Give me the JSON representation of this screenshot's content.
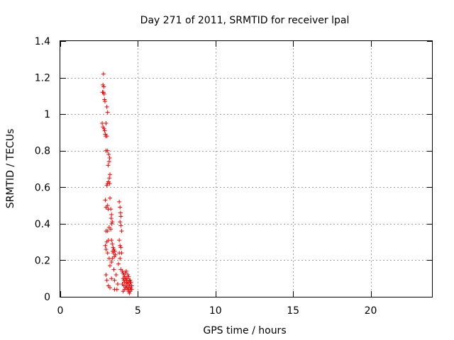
{
  "chart_data": {
    "type": "scatter",
    "title": "Day 271 of 2011, SRMTID for receiver lpal",
    "xlabel": "GPS time / hours",
    "ylabel": "SRMTID / TECUs",
    "xlim": [
      0,
      24
    ],
    "ylim": [
      0,
      1.4
    ],
    "x_ticks": [
      0,
      5,
      10,
      15,
      20
    ],
    "x_tick_labels": [
      "0",
      "5",
      "10",
      "15",
      "20"
    ],
    "y_ticks": [
      0,
      0.2,
      0.4,
      0.6,
      0.8,
      1.0,
      1.2,
      1.4
    ],
    "y_tick_labels": [
      "0",
      "0.2",
      "0.4",
      "0.6",
      "0.8",
      "1",
      "1.2",
      "1.4"
    ],
    "grid": true,
    "marker": "+",
    "color": "#ff0000",
    "series": [
      {
        "name": "SRMTID",
        "points": [
          [
            2.78,
            1.22
          ],
          [
            2.75,
            1.16
          ],
          [
            2.8,
            1.15
          ],
          [
            2.72,
            1.12
          ],
          [
            2.78,
            1.12
          ],
          [
            2.82,
            1.11
          ],
          [
            2.85,
            1.08
          ],
          [
            2.88,
            1.07
          ],
          [
            3.0,
            1.04
          ],
          [
            3.05,
            1.01
          ],
          [
            2.7,
            0.95
          ],
          [
            2.75,
            0.93
          ],
          [
            2.82,
            0.92
          ],
          [
            2.86,
            0.91
          ],
          [
            2.9,
            0.89
          ],
          [
            2.95,
            0.95
          ],
          [
            2.92,
            0.88
          ],
          [
            3.0,
            0.88
          ],
          [
            2.95,
            0.8
          ],
          [
            3.05,
            0.8
          ],
          [
            3.12,
            0.78
          ],
          [
            3.18,
            0.76
          ],
          [
            3.15,
            0.74
          ],
          [
            3.08,
            0.72
          ],
          [
            3.2,
            0.67
          ],
          [
            3.16,
            0.65
          ],
          [
            3.1,
            0.63
          ],
          [
            3.05,
            0.62
          ],
          [
            3.18,
            0.62
          ],
          [
            3.0,
            0.61
          ],
          [
            2.9,
            0.53
          ],
          [
            3.05,
            0.5
          ],
          [
            2.95,
            0.49
          ],
          [
            3.08,
            0.48
          ],
          [
            3.2,
            0.54
          ],
          [
            3.25,
            0.48
          ],
          [
            3.3,
            0.45
          ],
          [
            3.28,
            0.43
          ],
          [
            3.35,
            0.41
          ],
          [
            3.32,
            0.4
          ],
          [
            3.25,
            0.37
          ],
          [
            3.15,
            0.38
          ],
          [
            3.05,
            0.36
          ],
          [
            2.95,
            0.36
          ],
          [
            3.3,
            0.31
          ],
          [
            3.35,
            0.29
          ],
          [
            3.4,
            0.27
          ],
          [
            3.45,
            0.26
          ],
          [
            3.38,
            0.25
          ],
          [
            3.5,
            0.25
          ],
          [
            3.42,
            0.24
          ],
          [
            3.55,
            0.23
          ],
          [
            3.48,
            0.22
          ],
          [
            3.35,
            0.21
          ],
          [
            3.3,
            0.19
          ],
          [
            3.1,
            0.31
          ],
          [
            3.0,
            0.3
          ],
          [
            2.9,
            0.28
          ],
          [
            2.95,
            0.26
          ],
          [
            3.05,
            0.24
          ],
          [
            3.15,
            0.21
          ],
          [
            3.2,
            0.17
          ],
          [
            3.45,
            0.15
          ],
          [
            3.6,
            0.12
          ],
          [
            3.3,
            0.1
          ],
          [
            3.5,
            0.09
          ],
          [
            3.0,
            0.09
          ],
          [
            2.95,
            0.12
          ],
          [
            3.1,
            0.06
          ],
          [
            3.2,
            0.05
          ],
          [
            3.5,
            0.04
          ],
          [
            3.7,
            0.07
          ],
          [
            3.65,
            0.04
          ],
          [
            3.8,
            0.52
          ],
          [
            3.85,
            0.49
          ],
          [
            3.88,
            0.46
          ],
          [
            3.9,
            0.44
          ],
          [
            3.85,
            0.41
          ],
          [
            3.9,
            0.39
          ],
          [
            3.95,
            0.36
          ],
          [
            3.8,
            0.31
          ],
          [
            3.85,
            0.28
          ],
          [
            3.9,
            0.27
          ],
          [
            3.8,
            0.24
          ],
          [
            3.95,
            0.24
          ],
          [
            3.85,
            0.21
          ],
          [
            3.75,
            0.18
          ],
          [
            3.9,
            0.15
          ],
          [
            4.0,
            0.14
          ],
          [
            4.05,
            0.13
          ],
          [
            4.1,
            0.12
          ],
          [
            4.15,
            0.11
          ],
          [
            4.2,
            0.13
          ],
          [
            4.25,
            0.14
          ],
          [
            4.05,
            0.1
          ],
          [
            4.1,
            0.09
          ],
          [
            4.15,
            0.08
          ],
          [
            4.2,
            0.1
          ],
          [
            4.25,
            0.09
          ],
          [
            4.3,
            0.08
          ],
          [
            4.35,
            0.07
          ],
          [
            4.4,
            0.08
          ],
          [
            4.45,
            0.06
          ],
          [
            4.5,
            0.07
          ],
          [
            4.55,
            0.05
          ],
          [
            4.6,
            0.06
          ],
          [
            4.3,
            0.05
          ],
          [
            4.35,
            0.04
          ],
          [
            4.4,
            0.03
          ],
          [
            4.45,
            0.02
          ],
          [
            4.5,
            0.04
          ],
          [
            4.25,
            0.06
          ],
          [
            4.0,
            0.07
          ],
          [
            4.1,
            0.06
          ],
          [
            4.2,
            0.05
          ],
          [
            4.3,
            0.1
          ],
          [
            4.4,
            0.11
          ],
          [
            4.5,
            0.09
          ],
          [
            4.55,
            0.08
          ],
          [
            4.6,
            0.04
          ],
          [
            4.15,
            0.04
          ],
          [
            4.05,
            0.03
          ],
          [
            4.45,
            0.09
          ],
          [
            4.35,
            0.12
          ],
          [
            4.25,
            0.07
          ],
          [
            4.5,
            0.03
          ],
          [
            4.4,
            0.05
          ]
        ]
      }
    ]
  }
}
